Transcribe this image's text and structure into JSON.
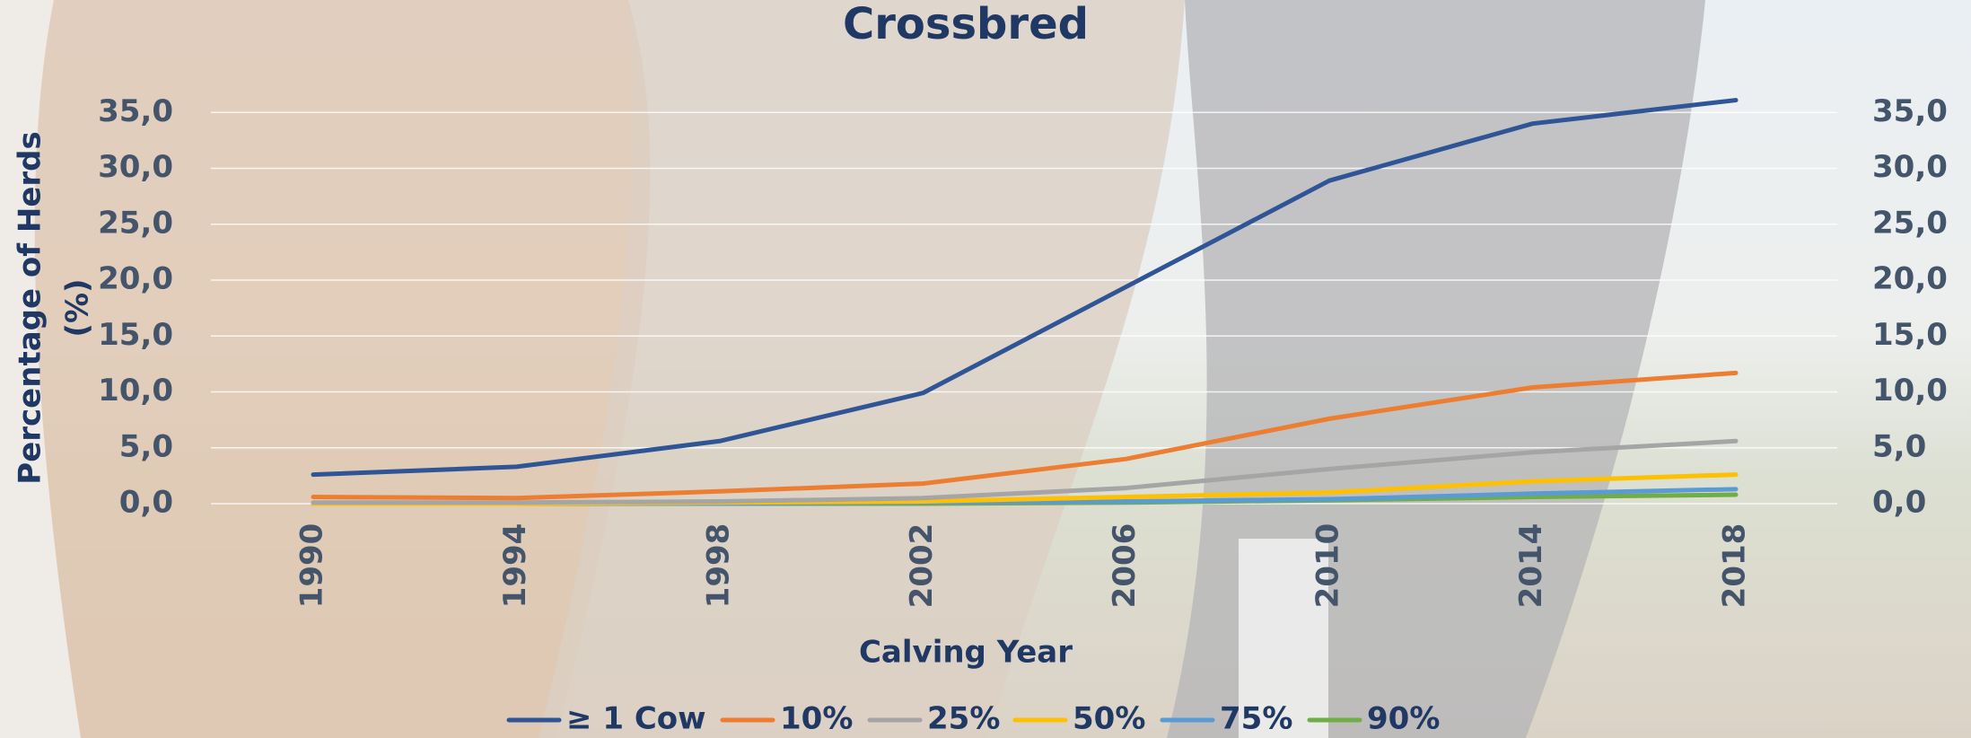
{
  "chart_data": {
    "type": "line",
    "title": "Crossbred",
    "xlabel": "Calving Year",
    "ylabel": [
      "Percentage of Herds",
      "(%)"
    ],
    "categories": [
      "1990",
      "1994",
      "1998",
      "2002",
      "2006",
      "2010",
      "2014",
      "2018"
    ],
    "series": [
      {
        "name": "≥ 1 Cow",
        "color": "#2f5597",
        "values": [
          2.6,
          3.3,
          5.6,
          9.9,
          19.4,
          28.9,
          34.0,
          36.1
        ]
      },
      {
        "name": "10%",
        "color": "#ed7d31",
        "values": [
          0.6,
          0.5,
          1.1,
          1.8,
          4.0,
          7.6,
          10.4,
          11.7
        ]
      },
      {
        "name": "25%",
        "color": "#a5a5a5",
        "values": [
          0.1,
          0.1,
          0.2,
          0.5,
          1.4,
          3.1,
          4.6,
          5.6
        ]
      },
      {
        "name": "50%",
        "color": "#ffc000",
        "values": [
          0.0,
          0.0,
          0.1,
          0.2,
          0.6,
          1.0,
          2.0,
          2.6
        ]
      },
      {
        "name": "75%",
        "color": "#5b9bd5",
        "values": [
          0.0,
          0.0,
          0.0,
          0.1,
          0.2,
          0.4,
          0.9,
          1.3
        ]
      },
      {
        "name": "90%",
        "color": "#70ad47",
        "values": [
          0.0,
          0.0,
          0.0,
          0.0,
          0.1,
          0.3,
          0.6,
          0.8
        ]
      }
    ],
    "ylim": [
      0,
      40
    ],
    "yticks": [
      {
        "value": 0,
        "label": "0,0"
      },
      {
        "value": 5,
        "label": "5,0"
      },
      {
        "value": 10,
        "label": "10,0"
      },
      {
        "value": 15,
        "label": "15,0"
      },
      {
        "value": 20,
        "label": "20,0"
      },
      {
        "value": 25,
        "label": "25,0"
      },
      {
        "value": 30,
        "label": "30,0"
      },
      {
        "value": 35,
        "label": "35,0"
      }
    ],
    "y2lim": [
      0,
      40
    ],
    "y2ticks": [
      {
        "value": 0,
        "label": "0,0"
      },
      {
        "value": 5,
        "label": "5,0"
      },
      {
        "value": 10,
        "label": "10,0"
      },
      {
        "value": 15,
        "label": "15,0"
      },
      {
        "value": 20,
        "label": "20,0"
      },
      {
        "value": 25,
        "label": "25,0"
      },
      {
        "value": 30,
        "label": "30,0"
      },
      {
        "value": 35,
        "label": "35,0"
      }
    ],
    "grid": true,
    "legend": "bottom"
  }
}
